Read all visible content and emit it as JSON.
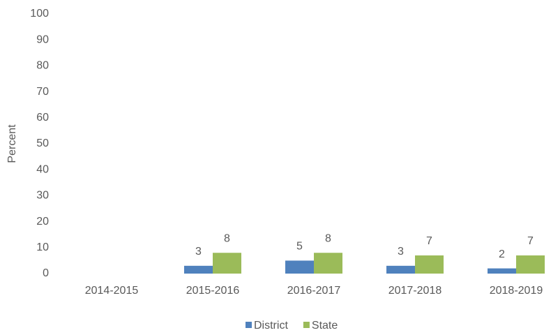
{
  "chart_data": {
    "type": "bar",
    "y_label": "Percent",
    "categories": [
      "2014-2015",
      "2015-2016",
      "2016-2017",
      "2017-2018",
      "2018-2019"
    ],
    "series": [
      {
        "name": "District",
        "color": "#4f81bd",
        "values": [
          null,
          3,
          5,
          3,
          2
        ]
      },
      {
        "name": "State",
        "color": "#9bbb59",
        "values": [
          null,
          8,
          8,
          7,
          7
        ]
      }
    ],
    "ylim": [
      0,
      100
    ],
    "yticks": [
      0,
      10,
      20,
      30,
      40,
      50,
      60,
      70,
      80,
      90,
      100
    ],
    "grid": false,
    "legend": "bottom"
  }
}
